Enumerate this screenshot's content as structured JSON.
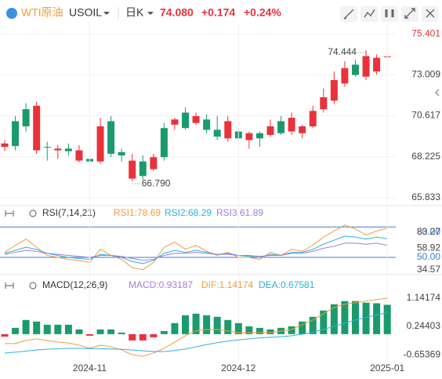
{
  "header": {
    "name": "WTI原油",
    "symbol": "USOIL",
    "period": "日K",
    "price": "74.080",
    "change": "+0.174",
    "change_pct": "+0.24%"
  },
  "chart_data": [
    {
      "type": "candlestick",
      "open": [
        68.8,
        70.3,
        71.0,
        68.6,
        68.8,
        68.6,
        68.7,
        68.0,
        68.1,
        67.95,
        70.3,
        68.5,
        66.95,
        67.95,
        67.5,
        69.9,
        70.1,
        70.8,
        70.2,
        70.4,
        69.8,
        69.3,
        69.7,
        69.2,
        69.6,
        69.5,
        70.3,
        69.7,
        69.6,
        70.0,
        71.0,
        71.5,
        72.5,
        73.6,
        72.9,
        73.2,
        74.08
      ],
      "high": [
        69.2,
        70.6,
        71.35,
        71.45,
        69.1,
        68.9,
        69.0,
        68.9,
        68.4,
        70.5,
        70.6,
        68.7,
        68.4,
        68.3,
        68.4,
        70.2,
        70.5,
        71.1,
        70.8,
        70.7,
        70.6,
        70.6,
        69.9,
        69.7,
        69.7,
        70.4,
        70.6,
        70.8,
        70.1,
        71.2,
        72.2,
        73.2,
        73.8,
        73.9,
        74.444,
        74.2,
        74.15
      ],
      "low": [
        68.55,
        68.6,
        69.7,
        68.4,
        68.0,
        68.1,
        68.3,
        67.9,
        67.7,
        67.8,
        68.2,
        67.95,
        66.79,
        66.9,
        67.4,
        68.0,
        69.8,
        69.8,
        70.1,
        69.6,
        69.2,
        69.1,
        69.2,
        68.7,
        68.8,
        69.4,
        69.5,
        69.5,
        69.3,
        69.9,
        70.8,
        71.3,
        72.3,
        72.9,
        72.7,
        73.0,
        74.0
      ],
      "close": [
        69.0,
        68.85,
        70.0,
        71.2,
        68.75,
        68.7,
        68.55,
        68.6,
        67.95,
        70.0,
        68.4,
        68.3,
        68.0,
        67.1,
        68.2,
        68.2,
        70.4,
        69.9,
        70.6,
        69.8,
        69.4,
        70.3,
        69.3,
        69.6,
        69.3,
        70.0,
        69.6,
        70.5,
        70.0,
        70.9,
        71.7,
        72.7,
        73.4,
        73.0,
        74.1,
        74.0,
        74.08
      ],
      "up_color": "#e9323a",
      "down_color": "#1b9b6b",
      "ylim": [
        65.375,
        76.0
      ],
      "yticks": [
        {
          "value": 65.833,
          "label": "65.833"
        },
        {
          "value": 68.225,
          "label": "68.225"
        },
        {
          "value": 70.617,
          "label": "70.617"
        },
        {
          "value": 73.009,
          "label": "73.009"
        },
        {
          "value": 75.401,
          "label": "75.401"
        }
      ],
      "high_label": "74.444",
      "low_label": "66.790",
      "grid": true
    },
    {
      "type": "line",
      "title": "RSI(7,14,21)",
      "series": [
        {
          "name": "RSI1:78.69",
          "color": "#f39c3c",
          "values": [
            55,
            62,
            68,
            60,
            52,
            50,
            48,
            47,
            45,
            58,
            52,
            48,
            40,
            38,
            45,
            60,
            65,
            58,
            62,
            56,
            52,
            55,
            50,
            50,
            48,
            55,
            52,
            58,
            56,
            62,
            70,
            76,
            82,
            78,
            72,
            76,
            78.69
          ]
        },
        {
          "name": "RSI2:68.29",
          "color": "#2bb3d9",
          "values": [
            54,
            57,
            60,
            58,
            54,
            52,
            50,
            49,
            48,
            53,
            52,
            50,
            46,
            44,
            47,
            54,
            57,
            55,
            57,
            55,
            53,
            54,
            52,
            51,
            50,
            53,
            52,
            55,
            55,
            58,
            63,
            67,
            71,
            70,
            68,
            70,
            68.29
          ]
        },
        {
          "name": "RSI3:61.89",
          "color": "#a07cd8",
          "values": [
            53,
            55,
            57,
            56,
            54,
            53,
            52,
            51,
            50,
            52,
            52,
            51,
            49,
            47,
            48,
            52,
            54,
            54,
            55,
            54,
            53,
            53,
            52,
            52,
            51,
            52,
            52,
            54,
            54,
            56,
            59,
            61,
            64,
            64,
            63,
            64,
            61.89
          ]
        }
      ],
      "ylim": [
        34.57,
        83.27
      ],
      "yticks": [
        {
          "value": 80,
          "label": "80.00"
        },
        83.27,
        58.92,
        {
          "value": 50,
          "label": "50.00"
        },
        34.57
      ],
      "reference_lines": [
        80,
        50
      ],
      "reference_color": "#3b7fd9"
    },
    {
      "type": "macd",
      "title": "MACD(12,26,9)",
      "histogram": {
        "name": "MACD:0.93187",
        "color": "#a77ed8",
        "up_color": "#1b9b6b",
        "down_color": "#e9323a",
        "values": [
          -0.08,
          0.2,
          0.45,
          0.4,
          0.3,
          0.3,
          0.3,
          0.15,
          -0.05,
          0.15,
          0.15,
          0.05,
          -0.2,
          -0.2,
          -0.1,
          0.1,
          0.35,
          0.6,
          0.65,
          0.6,
          0.55,
          0.45,
          0.35,
          0.25,
          0.2,
          0.15,
          0.2,
          0.25,
          0.4,
          0.55,
          0.75,
          0.95,
          1.05,
          1.05,
          1.0,
          0.98,
          0.93187
        ]
      },
      "series": [
        {
          "name": "DIF:1.14174",
          "color": "#f39c3c",
          "values": [
            -0.3,
            -0.3,
            -0.2,
            -0.15,
            -0.2,
            -0.25,
            -0.28,
            -0.35,
            -0.45,
            -0.35,
            -0.4,
            -0.5,
            -0.65,
            -0.7,
            -0.6,
            -0.45,
            -0.25,
            -0.05,
            0.1,
            0.15,
            0.15,
            0.1,
            0.05,
            0.05,
            0.05,
            0.05,
            0.1,
            0.15,
            0.3,
            0.45,
            0.65,
            0.85,
            0.95,
            1.0,
            1.05,
            1.1,
            1.14174
          ]
        },
        {
          "name": "DEA:0.67581",
          "color": "#2bb3d9",
          "values": [
            -0.6,
            -0.57,
            -0.54,
            -0.5,
            -0.48,
            -0.46,
            -0.45,
            -0.45,
            -0.46,
            -0.46,
            -0.47,
            -0.48,
            -0.5,
            -0.53,
            -0.55,
            -0.55,
            -0.52,
            -0.47,
            -0.4,
            -0.33,
            -0.27,
            -0.22,
            -0.18,
            -0.15,
            -0.12,
            -0.1,
            -0.08,
            -0.05,
            0.0,
            0.06,
            0.15,
            0.25,
            0.35,
            0.45,
            0.53,
            0.61,
            0.67581
          ]
        }
      ],
      "ylim": [
        -0.85,
        1.64
      ],
      "yticks": [
        1.14174,
        0.24403,
        -0.65369
      ],
      "xticks": [
        {
          "value": 8,
          "label": "2024-11"
        },
        {
          "value": 22,
          "label": "2024-12"
        },
        {
          "value": 36,
          "label": "2025-01"
        }
      ]
    }
  ]
}
